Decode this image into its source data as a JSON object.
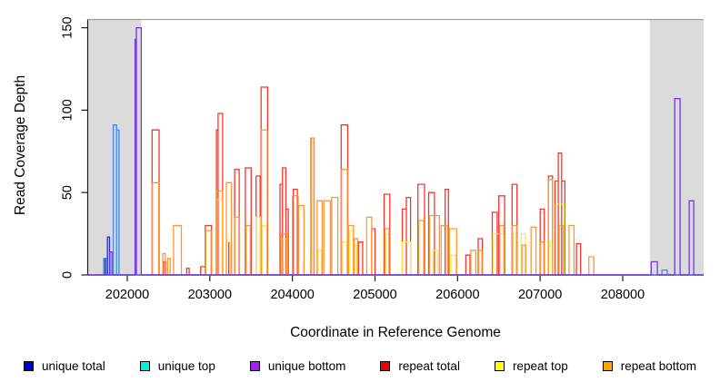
{
  "figure": {
    "x_axis_label": "Coordinate in Reference Genome",
    "y_axis_label": "Read Coverage Depth"
  },
  "chart_data": {
    "type": "line",
    "subtype": "step-coverage",
    "title": "",
    "xlabel": "Coordinate in Reference Genome",
    "ylabel": "Read Coverage Depth",
    "x_domain": [
      201521,
      208980
    ],
    "y_domain": [
      0,
      155
    ],
    "x_ticks": [
      202000,
      203000,
      204000,
      205000,
      206000,
      207000,
      208000
    ],
    "y_ticks": [
      0,
      50,
      100,
      150
    ],
    "grid": false,
    "legend_position": "bottom",
    "shade_color": "#DBDBDB",
    "shade_top_line_color": "#9E9E9E",
    "axis_color": "#1A1A1A",
    "shaded_regions": [
      {
        "start": 201521,
        "end": 202170
      },
      {
        "start": 208330,
        "end": 208980
      }
    ],
    "draw_order": [
      3,
      4,
      5,
      0,
      1,
      2
    ],
    "series": [
      {
        "name": "unique total",
        "legend_color": "#0000CD",
        "line_color": "#2B2BD5",
        "segments": [
          [
            201730,
            201760,
            10
          ],
          [
            201760,
            201785,
            23
          ]
        ]
      },
      {
        "name": "unique top",
        "legend_color": "#00F0DC",
        "line_color": "#3F86F2",
        "segments": [
          [
            201714,
            201747,
            10
          ],
          [
            201830,
            201870,
            91
          ],
          [
            201870,
            201900,
            88
          ],
          [
            208475,
            208540,
            3
          ]
        ]
      },
      {
        "name": "unique bottom",
        "legend_color": "#A020F0",
        "line_color": "#7237E3",
        "segments": [
          [
            201790,
            201815,
            14
          ],
          [
            202095,
            202110,
            143
          ],
          [
            202110,
            202170,
            150
          ],
          [
            208345,
            208420,
            8
          ],
          [
            208630,
            208695,
            107
          ],
          [
            208805,
            208860,
            45
          ]
        ]
      },
      {
        "name": "repeat total",
        "legend_color": "#EE0000",
        "line_color": "#F5352B",
        "segments": [
          [
            202300,
            202385,
            88
          ],
          [
            202440,
            202465,
            8
          ],
          [
            202720,
            202750,
            4
          ],
          [
            202890,
            202945,
            5
          ],
          [
            202945,
            203020,
            30
          ],
          [
            203080,
            203100,
            88
          ],
          [
            203100,
            203155,
            98
          ],
          [
            203230,
            203260,
            20
          ],
          [
            203300,
            203355,
            64
          ],
          [
            203430,
            203500,
            65
          ],
          [
            203560,
            203610,
            60
          ],
          [
            203620,
            203700,
            114
          ],
          [
            203850,
            203880,
            55
          ],
          [
            203880,
            203920,
            65
          ],
          [
            203920,
            203950,
            40
          ],
          [
            204010,
            204060,
            52
          ],
          [
            204225,
            204262,
            83
          ],
          [
            204590,
            204670,
            91
          ],
          [
            204800,
            204850,
            20
          ],
          [
            204960,
            205000,
            28
          ],
          [
            205110,
            205180,
            49
          ],
          [
            205330,
            205380,
            40
          ],
          [
            205380,
            205430,
            47
          ],
          [
            205520,
            205600,
            55
          ],
          [
            205650,
            205720,
            50
          ],
          [
            205850,
            205890,
            52
          ],
          [
            206100,
            206150,
            12
          ],
          [
            206250,
            206300,
            22
          ],
          [
            206420,
            206480,
            38
          ],
          [
            206500,
            206570,
            48
          ],
          [
            206660,
            206720,
            55
          ],
          [
            207000,
            207050,
            40
          ],
          [
            207100,
            207150,
            60
          ],
          [
            207180,
            207220,
            57
          ],
          [
            207220,
            207260,
            74
          ],
          [
            207260,
            207300,
            57
          ],
          [
            207440,
            207490,
            19
          ]
        ]
      },
      {
        "name": "repeat top",
        "legend_color": "#FFFF00",
        "line_color": "#FBE84A",
        "segments": [
          [
            203090,
            203150,
            46
          ],
          [
            203200,
            203250,
            20
          ],
          [
            203560,
            203610,
            35
          ],
          [
            203630,
            203690,
            30
          ],
          [
            203870,
            203930,
            22
          ],
          [
            204310,
            204350,
            15
          ],
          [
            204600,
            204660,
            20
          ],
          [
            204690,
            204735,
            27
          ],
          [
            204740,
            204780,
            18
          ],
          [
            205130,
            205170,
            25
          ],
          [
            205330,
            205430,
            20
          ],
          [
            205700,
            205760,
            15
          ],
          [
            205920,
            205980,
            12
          ],
          [
            206430,
            206560,
            25
          ],
          [
            206670,
            206710,
            25
          ],
          [
            206770,
            206820,
            25
          ],
          [
            207110,
            207145,
            20
          ],
          [
            207190,
            207290,
            43
          ]
        ]
      },
      {
        "name": "repeat bottom",
        "legend_color": "#FFA500",
        "line_color": "#FF962E",
        "segments": [
          [
            202305,
            202380,
            56
          ],
          [
            202430,
            202460,
            13
          ],
          [
            202490,
            202520,
            10
          ],
          [
            202560,
            202655,
            30
          ],
          [
            202950,
            203015,
            27
          ],
          [
            203085,
            203155,
            51
          ],
          [
            203200,
            203260,
            56
          ],
          [
            203300,
            203360,
            35
          ],
          [
            203440,
            203490,
            30
          ],
          [
            203625,
            203695,
            88
          ],
          [
            203860,
            203940,
            25
          ],
          [
            204000,
            204070,
            48
          ],
          [
            204075,
            204140,
            42
          ],
          [
            204230,
            204260,
            83
          ],
          [
            204300,
            204360,
            45
          ],
          [
            204380,
            204460,
            45
          ],
          [
            204475,
            204550,
            47
          ],
          [
            204595,
            204665,
            64
          ],
          [
            204680,
            204740,
            30
          ],
          [
            204750,
            204790,
            22
          ],
          [
            204900,
            204960,
            35
          ],
          [
            205120,
            205170,
            28
          ],
          [
            205530,
            205590,
            33
          ],
          [
            205660,
            205780,
            36
          ],
          [
            205800,
            205880,
            30
          ],
          [
            205900,
            205990,
            28
          ],
          [
            206160,
            206220,
            15
          ],
          [
            206255,
            206295,
            15
          ],
          [
            206510,
            206560,
            30
          ],
          [
            206665,
            206715,
            30
          ],
          [
            206780,
            206825,
            18
          ],
          [
            206890,
            206950,
            29
          ],
          [
            207005,
            207045,
            20
          ],
          [
            207100,
            207150,
            58
          ],
          [
            207230,
            207280,
            30
          ],
          [
            207350,
            207410,
            30
          ],
          [
            207590,
            207650,
            11
          ]
        ]
      }
    ]
  }
}
